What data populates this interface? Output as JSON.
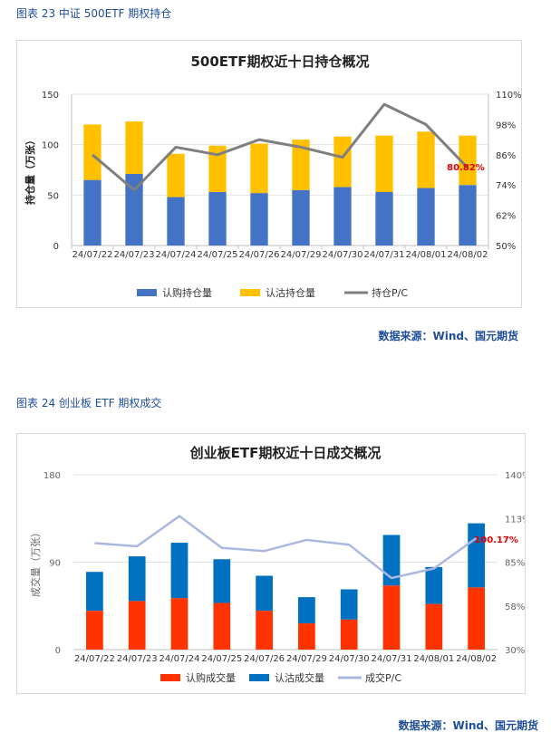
{
  "figure1": {
    "caption": "图表 23  中证 500ETF 期权持仓",
    "source": "数据来源：Wind、国元期货"
  },
  "figure2": {
    "caption": "图表 24  创业板 ETF 期权成交",
    "source": "数据来源：Wind、国元期货"
  },
  "chart_data": [
    {
      "type": "bar",
      "stacked": true,
      "title": "500ETF期权近十日持仓概况",
      "ylabel": "持仓量（万张）",
      "ylim": [
        0,
        150
      ],
      "yticks": [
        "0",
        "50",
        "100",
        "150"
      ],
      "y2lim": [
        50,
        110
      ],
      "y2ticks": [
        "50%",
        "62%",
        "74%",
        "86%",
        "98%",
        "110%"
      ],
      "categories": [
        "24/07/22",
        "24/07/23",
        "24/07/24",
        "24/07/25",
        "24/07/26",
        "24/07/29",
        "24/07/30",
        "24/07/31",
        "24/08/01",
        "24/08/02"
      ],
      "series": [
        {
          "name": "认购持仓量",
          "type": "bar",
          "color": "#4472c4",
          "values": [
            65,
            71,
            48,
            53,
            52,
            55,
            58,
            53,
            57,
            60
          ]
        },
        {
          "name": "认沽持仓量",
          "type": "bar",
          "color": "#ffc000",
          "values": [
            55,
            52,
            43,
            46,
            49,
            50,
            50,
            56,
            56,
            49
          ]
        },
        {
          "name": "持仓P/C",
          "type": "line",
          "axis": "right",
          "color": "#7f7f7f",
          "values": [
            86,
            72,
            89,
            86,
            92,
            89,
            85,
            106,
            98,
            80.82
          ]
        }
      ],
      "annotation": {
        "text": "80.82%",
        "index": 9,
        "color": "#e00000"
      },
      "legend": "bottom",
      "grid": true
    },
    {
      "type": "bar",
      "stacked": true,
      "title": "创业板ETF期权近十日成交概况",
      "ylabel": "成交量（万张）",
      "ylim": [
        0,
        180
      ],
      "yticks": [
        "0",
        "90",
        "180"
      ],
      "y2lim": [
        30,
        140
      ],
      "y2ticks": [
        "30%",
        "58%",
        "85%",
        "113%",
        "140%"
      ],
      "categories": [
        "24/07/22",
        "24/07/23",
        "24/07/24",
        "24/07/25",
        "24/07/26",
        "24/07/29",
        "24/07/30",
        "24/07/31",
        "24/08/01",
        "24/08/02"
      ],
      "series": [
        {
          "name": "认购成交量",
          "type": "bar",
          "color": "#ff3300",
          "values": [
            40,
            50,
            53,
            48,
            40,
            27,
            31,
            66,
            47,
            64
          ]
        },
        {
          "name": "认沽成交量",
          "type": "bar",
          "color": "#0070c0",
          "values": [
            40,
            46,
            57,
            45,
            36,
            27,
            31,
            52,
            38,
            66
          ]
        },
        {
          "name": "成交P/C",
          "type": "line",
          "axis": "right",
          "color": "#aab8e0",
          "values": [
            97,
            95,
            114,
            94,
            92,
            99,
            96,
            75,
            81,
            100.17
          ]
        }
      ],
      "annotation": {
        "text": "100.17%",
        "index": 9,
        "color": "#e00000"
      },
      "legend": "bottom",
      "grid": true
    }
  ]
}
